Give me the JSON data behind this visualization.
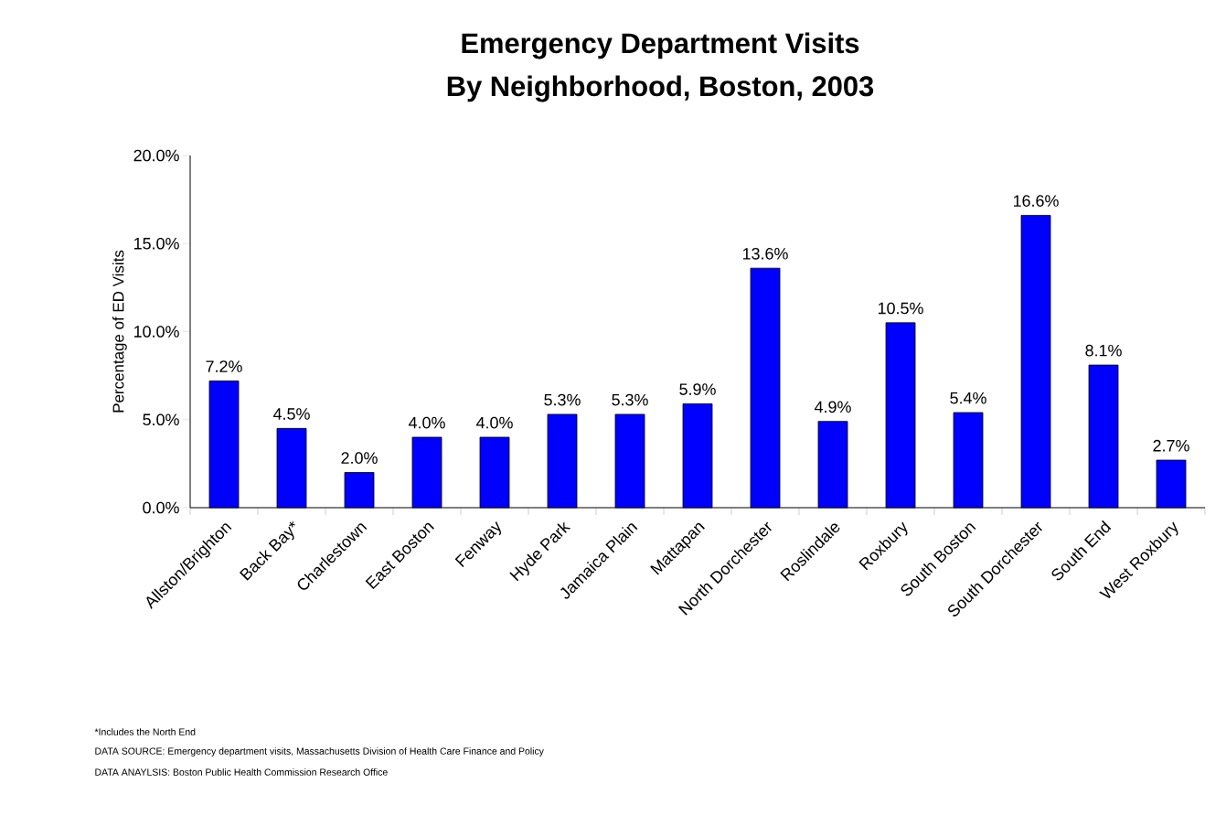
{
  "chart_data": {
    "type": "bar",
    "title": "Emergency Department Visits",
    "subtitle": "By Neighborhood, Boston, 2003",
    "ylabel": "Percentage  of ED Visits",
    "categories": [
      "Allston/Brighton",
      "Back Bay*",
      "Charlestown",
      "East Boston",
      "Fenway",
      "Hyde Park",
      "Jamaica Plain",
      "Mattapan",
      "North Dorchester",
      "Roslindale",
      "Roxbury",
      "South Boston",
      "South Dorchester",
      "South End",
      "West Roxbury"
    ],
    "values": [
      7.2,
      4.5,
      2.0,
      4.0,
      4.0,
      5.3,
      5.3,
      5.9,
      13.6,
      4.9,
      10.5,
      5.4,
      16.6,
      8.1,
      2.7
    ],
    "value_labels": [
      "7.2%",
      "4.5%",
      "2.0%",
      "4.0%",
      "4.0%",
      "5.3%",
      "5.3%",
      "5.9%",
      "13.6%",
      "4.9%",
      "10.5%",
      "5.4%",
      "16.6%",
      "8.1%",
      "2.7%"
    ],
    "color": "#0000ff",
    "ylim": [
      0,
      20
    ],
    "yticks": [
      {
        "value": 0,
        "label": "0.0%"
      },
      {
        "value": 5,
        "label": "5.0%"
      },
      {
        "value": 10,
        "label": "10.0%"
      },
      {
        "value": 15,
        "label": "15.0%"
      },
      {
        "value": 20,
        "label": "20.0%"
      }
    ],
    "grid": false,
    "annotations": [
      "*Includes the North End",
      "DATA SOURCE:  Emergency department visits, Massachusetts Division of Health Care Finance and Policy",
      "DATA ANAYLSIS:  Boston Public Health Commission Research Office"
    ]
  }
}
